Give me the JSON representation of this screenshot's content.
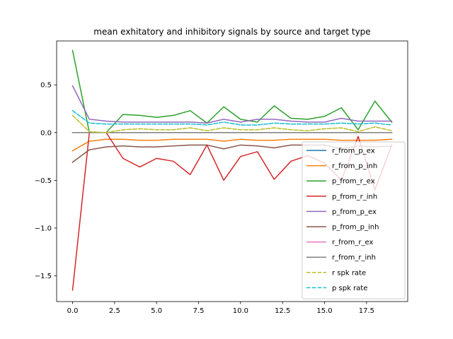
{
  "chart_data": {
    "type": "line",
    "title": "mean exhitatory and inhibitory signals by source and target type",
    "xlabel": "",
    "ylabel": "",
    "xlim": [
      -0.95,
      19.95
    ],
    "ylim": [
      -1.77,
      0.96
    ],
    "x_ticks": [
      {
        "value": 0,
        "label": "0.0"
      },
      {
        "value": 2.5,
        "label": "2.5"
      },
      {
        "value": 5,
        "label": "5.0"
      },
      {
        "value": 7.5,
        "label": "7.5"
      },
      {
        "value": 10,
        "label": "10.0"
      },
      {
        "value": 12.5,
        "label": "12.5"
      },
      {
        "value": 15,
        "label": "15.0"
      },
      {
        "value": 17.5,
        "label": "17.5"
      }
    ],
    "y_ticks": [
      {
        "value": 0.5,
        "label": "0.5"
      },
      {
        "value": 0.0,
        "label": "0.0"
      },
      {
        "value": -0.5,
        "label": "−0.5"
      },
      {
        "value": -1.0,
        "label": "−1.0"
      },
      {
        "value": -1.5,
        "label": "−1.5"
      }
    ],
    "grid": false,
    "legend_position": "lower-right",
    "x": [
      0,
      1,
      2,
      3,
      4,
      5,
      6,
      7,
      8,
      9,
      10,
      11,
      12,
      13,
      14,
      15,
      16,
      17,
      18,
      19
    ],
    "series": [
      {
        "name": "r_from_p_ex",
        "color": "#1f77b4",
        "dash": "solid",
        "values": [
          0.0,
          0.0,
          0.0,
          0.0,
          0.0,
          0.0,
          0.0,
          0.0,
          0.0,
          0.0,
          0.0,
          0.0,
          0.0,
          0.0,
          0.0,
          0.0,
          0.0,
          0.0,
          0.0,
          0.0
        ]
      },
      {
        "name": "r_from_p_inh",
        "color": "#ff7f0e",
        "dash": "solid",
        "values": [
          -0.19,
          -0.09,
          -0.07,
          -0.07,
          -0.08,
          -0.08,
          -0.07,
          -0.07,
          -0.07,
          -0.09,
          -0.07,
          -0.08,
          -0.08,
          -0.07,
          -0.07,
          -0.07,
          -0.08,
          -0.08,
          -0.08,
          -0.07
        ]
      },
      {
        "name": "p_from_r_ex",
        "color": "#2ca02c",
        "dash": "solid",
        "values": [
          0.86,
          0.0,
          0.0,
          0.19,
          0.18,
          0.16,
          0.18,
          0.23,
          0.1,
          0.27,
          0.14,
          0.11,
          0.28,
          0.15,
          0.14,
          0.17,
          0.26,
          0.03,
          0.33,
          0.11
        ]
      },
      {
        "name": "p_from_r_inh",
        "color": "#d62728",
        "dash": "solid",
        "values": [
          -1.65,
          0.0,
          0.0,
          -0.27,
          -0.36,
          -0.27,
          -0.3,
          -0.44,
          -0.13,
          -0.5,
          -0.25,
          -0.2,
          -0.49,
          -0.3,
          -0.24,
          -0.32,
          -0.5,
          -0.04,
          -0.6,
          -0.13
        ]
      },
      {
        "name": "p_from_p_ex",
        "color": "#9467bd",
        "dash": "solid",
        "values": [
          0.49,
          0.14,
          0.12,
          0.11,
          0.11,
          0.11,
          0.11,
          0.11,
          0.1,
          0.14,
          0.11,
          0.14,
          0.14,
          0.12,
          0.11,
          0.11,
          0.15,
          0.12,
          0.12,
          0.12
        ]
      },
      {
        "name": "p_from_p_inh",
        "color": "#8c564b",
        "dash": "solid",
        "values": [
          -0.31,
          -0.18,
          -0.15,
          -0.14,
          -0.15,
          -0.15,
          -0.14,
          -0.13,
          -0.13,
          -0.17,
          -0.13,
          -0.14,
          -0.16,
          -0.13,
          -0.13,
          -0.13,
          -0.17,
          -0.14,
          -0.15,
          -0.14
        ]
      },
      {
        "name": "r_from_r_ex",
        "color": "#e377c2",
        "dash": "solid",
        "values": [
          0.0,
          0.0,
          0.0,
          0.0,
          0.0,
          0.0,
          0.0,
          0.0,
          0.0,
          0.0,
          0.0,
          0.0,
          0.0,
          0.0,
          0.0,
          0.0,
          0.0,
          0.0,
          0.0,
          0.0
        ]
      },
      {
        "name": "r_from_r_inh",
        "color": "#7f7f7f",
        "dash": "solid",
        "values": [
          0.0,
          0.0,
          0.0,
          0.0,
          0.0,
          0.0,
          0.0,
          0.0,
          0.0,
          0.0,
          0.0,
          0.0,
          0.0,
          0.0,
          0.0,
          0.0,
          0.0,
          0.0,
          0.0,
          0.0
        ]
      },
      {
        "name": "r spk rate",
        "color": "#bcbd22",
        "dash": "dashed",
        "values": [
          0.18,
          0.01,
          0.0,
          0.03,
          0.04,
          0.03,
          0.03,
          0.05,
          0.02,
          0.05,
          0.03,
          0.03,
          0.05,
          0.03,
          0.02,
          0.04,
          0.05,
          0.01,
          0.06,
          0.02
        ]
      },
      {
        "name": "p spk rate",
        "color": "#17becf",
        "dash": "dashed",
        "values": [
          0.23,
          0.1,
          0.09,
          0.09,
          0.09,
          0.09,
          0.09,
          0.09,
          0.08,
          0.11,
          0.08,
          0.08,
          0.1,
          0.09,
          0.09,
          0.09,
          0.1,
          0.09,
          0.1,
          0.08
        ]
      }
    ]
  }
}
